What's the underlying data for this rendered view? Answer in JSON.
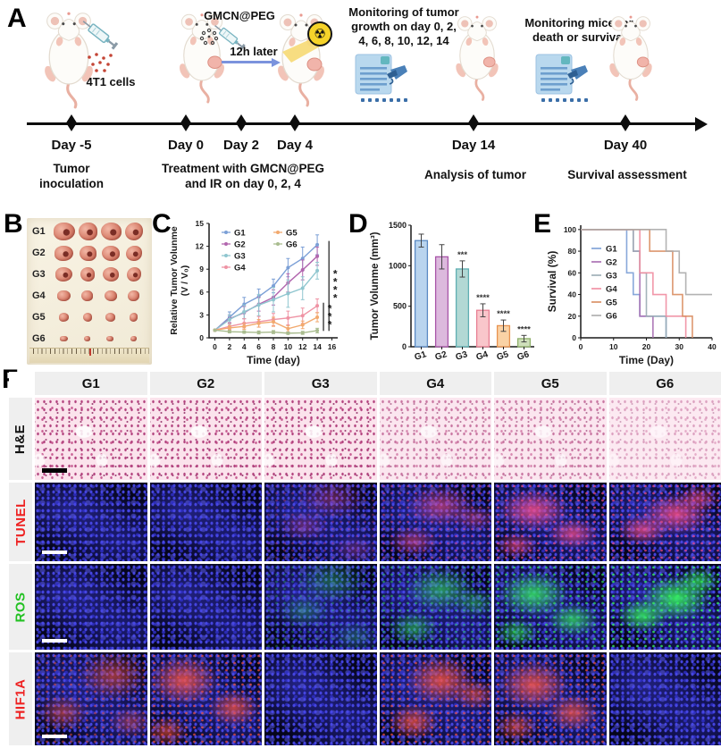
{
  "panel_a": {
    "label": "A",
    "gmcn_label": "GMCN@PEG",
    "cells_label": "4T1 cells",
    "arrow_label": "12h later",
    "monitor_tumor_lines": [
      "Monitoring of tumor",
      "growth on day 0, 2,",
      "4, 6, 8, 10, 12, 14"
    ],
    "monitor_mice_lines": [
      "Monitoring mice for",
      "death or survival"
    ],
    "treatment_lines": [
      "Treatment with GMCN@PEG",
      "and IR on day 0, 2, 4"
    ],
    "events": [
      {
        "day": "Day -5",
        "sub_lines": [
          "Tumor",
          "inoculation"
        ]
      },
      {
        "day": "Day 0"
      },
      {
        "day": "Day 2"
      },
      {
        "day": "Day 4"
      },
      {
        "day": "Day 14",
        "sub_lines": [
          "Analysis of tumor"
        ]
      },
      {
        "day": "Day 40",
        "sub_lines": [
          "Survival assessment"
        ]
      }
    ]
  },
  "panel_b": {
    "label": "B",
    "groups": [
      "G1",
      "G2",
      "G3",
      "G4",
      "G5",
      "G6"
    ],
    "tumors_per_row": 4
  },
  "chart_data": [
    {
      "panel_label": "C",
      "type": "line",
      "xlabel": "Time (day)",
      "ylabel_lines": [
        "Relative Tumor Volunme",
        "(V / V₀)"
      ],
      "x": [
        0,
        2,
        4,
        6,
        8,
        10,
        12,
        14
      ],
      "xticks": [
        0,
        2,
        4,
        6,
        8,
        10,
        12,
        14,
        16
      ],
      "ylim": [
        0,
        15
      ],
      "yticks": [
        0,
        3,
        6,
        9,
        12,
        15
      ],
      "legend_position": "upper-left",
      "series": [
        {
          "name": "G1",
          "color": "#7b9fd6",
          "values": [
            1,
            2.7,
            4.4,
            5.4,
            6.8,
            9.2,
            10.4,
            12.2
          ],
          "err": [
            0.1,
            0.7,
            0.9,
            1.0,
            0.9,
            1.2,
            1.5,
            1.3
          ]
        },
        {
          "name": "G2",
          "color": "#b266ae",
          "values": [
            1,
            2.5,
            3.3,
            4.4,
            5.3,
            7.2,
            8.9,
            10.7
          ],
          "err": [
            0.1,
            0.5,
            0.8,
            0.9,
            1.0,
            1.2,
            1.3,
            1.2
          ]
        },
        {
          "name": "G3",
          "color": "#8fc6cf",
          "values": [
            1,
            2.4,
            3.4,
            4.3,
            5.0,
            5.8,
            6.5,
            8.8
          ],
          "err": [
            0.1,
            0.6,
            0.9,
            1.4,
            1.6,
            1.8,
            1.5,
            1.1
          ]
        },
        {
          "name": "G4",
          "color": "#ef93a4",
          "values": [
            1,
            1.5,
            1.9,
            2.1,
            2.4,
            2.6,
            2.9,
            4.2
          ],
          "err": [
            0.1,
            0.4,
            0.6,
            0.7,
            0.8,
            0.9,
            1.0,
            0.9
          ]
        },
        {
          "name": "G5",
          "color": "#f2a96e",
          "values": [
            1,
            1.3,
            1.5,
            1.9,
            2.1,
            1.2,
            1.7,
            2.7
          ],
          "err": [
            0.1,
            0.3,
            0.4,
            0.5,
            0.6,
            0.4,
            0.5,
            0.6
          ]
        },
        {
          "name": "G6",
          "color": "#a9bc8f",
          "values": [
            1,
            0.8,
            0.75,
            0.7,
            0.75,
            0.6,
            0.65,
            0.95
          ],
          "err": [
            0.05,
            0.15,
            0.15,
            0.2,
            0.2,
            0.15,
            0.2,
            0.3
          ]
        }
      ],
      "annotations": [
        {
          "text": "****",
          "x": 15.6,
          "y_bottom": 0.9,
          "y_top": 12.7
        },
        {
          "text": "***",
          "x": 14.85,
          "y_bottom": 0.9,
          "y_top": 4.6
        }
      ]
    },
    {
      "panel_label": "D",
      "type": "bar",
      "ylabel": "Tumor Volunme (mm³)",
      "categories": [
        "G1",
        "G2",
        "G3",
        "G4",
        "G5",
        "G6"
      ],
      "values": [
        1310,
        1110,
        960,
        450,
        260,
        100
      ],
      "errors": [
        80,
        150,
        100,
        80,
        70,
        40
      ],
      "sig": [
        "",
        "",
        "***",
        "****",
        "****",
        "****"
      ],
      "fill": [
        "#b9d4ee",
        "#dcb9dd",
        "#b2d8d4",
        "#f9c6cb",
        "#fad2a5",
        "#cfe0bb"
      ],
      "stroke": [
        "#5b8ac4",
        "#a855a8",
        "#5fafb2",
        "#e87f93",
        "#e89350",
        "#8fb06a"
      ],
      "ylim": [
        0,
        1500
      ],
      "yticks": [
        0,
        500,
        1000,
        1500
      ]
    },
    {
      "panel_label": "E",
      "type": "step",
      "xlabel": "Time (Day)",
      "ylabel": "Survival (%)",
      "xlim": [
        0,
        40
      ],
      "xticks": [
        0,
        10,
        20,
        30,
        40
      ],
      "ylim": [
        0,
        100
      ],
      "yticks": [
        0,
        20,
        40,
        60,
        80,
        100
      ],
      "legend_position": "center-left",
      "series": [
        {
          "name": "G1",
          "color": "#7b9fd6",
          "points": [
            [
              0,
              100
            ],
            [
              14,
              100
            ],
            [
              14,
              60
            ],
            [
              16,
              60
            ],
            [
              16,
              40
            ],
            [
              18,
              40
            ],
            [
              18,
              20
            ],
            [
              26,
              20
            ],
            [
              26,
              0
            ]
          ]
        },
        {
          "name": "G2",
          "color": "#a66bb0",
          "points": [
            [
              0,
              100
            ],
            [
              16,
              100
            ],
            [
              16,
              80
            ],
            [
              18,
              80
            ],
            [
              18,
              20
            ],
            [
              22,
              20
            ],
            [
              22,
              0
            ]
          ]
        },
        {
          "name": "G3",
          "color": "#9aacb4",
          "points": [
            [
              0,
              100
            ],
            [
              16,
              100
            ],
            [
              16,
              80
            ],
            [
              18,
              80
            ],
            [
              18,
              60
            ],
            [
              20,
              60
            ],
            [
              20,
              20
            ],
            [
              26,
              20
            ],
            [
              26,
              0
            ]
          ]
        },
        {
          "name": "G4",
          "color": "#f08ca0",
          "points": [
            [
              0,
              100
            ],
            [
              18,
              100
            ],
            [
              18,
              60
            ],
            [
              22,
              60
            ],
            [
              22,
              40
            ],
            [
              26,
              40
            ],
            [
              26,
              20
            ],
            [
              32,
              20
            ],
            [
              32,
              0
            ]
          ]
        },
        {
          "name": "G5",
          "color": "#d98c5f",
          "points": [
            [
              0,
              100
            ],
            [
              21,
              100
            ],
            [
              21,
              80
            ],
            [
              28,
              80
            ],
            [
              28,
              40
            ],
            [
              31,
              40
            ],
            [
              31,
              20
            ],
            [
              34,
              20
            ],
            [
              34,
              0
            ]
          ]
        },
        {
          "name": "G6",
          "color": "#ababab",
          "points": [
            [
              0,
              100
            ],
            [
              26,
              100
            ],
            [
              26,
              80
            ],
            [
              30,
              80
            ],
            [
              30,
              60
            ],
            [
              32,
              60
            ],
            [
              32,
              40
            ],
            [
              40,
              40
            ]
          ]
        }
      ]
    }
  ],
  "panel_f": {
    "label": "F",
    "columns": [
      "G1",
      "G2",
      "G3",
      "G4",
      "G5",
      "G6"
    ],
    "rows": [
      {
        "label": "H&E",
        "label_color": "#111111",
        "kind": "he",
        "scalebar": "black",
        "density": [
          3,
          3,
          3,
          2,
          2,
          1
        ]
      },
      {
        "label": "TUNEL",
        "label_color": "#ee2222",
        "kind": "fluor",
        "scalebar": "white",
        "signal_color": "#ff4f86",
        "intensity": [
          0,
          0,
          1,
          2,
          3,
          3
        ]
      },
      {
        "label": "ROS",
        "label_color": "#22c122",
        "kind": "fluor",
        "scalebar": "white",
        "signal_color": "#34ef5e",
        "intensity": [
          0,
          0,
          1,
          2,
          3,
          4
        ]
      },
      {
        "label": "HIF1A",
        "label_color": "#ee2222",
        "kind": "fluor",
        "scalebar": "white",
        "signal_color": "#ff5540",
        "intensity": [
          2,
          3,
          0,
          3,
          3,
          0
        ]
      }
    ]
  }
}
